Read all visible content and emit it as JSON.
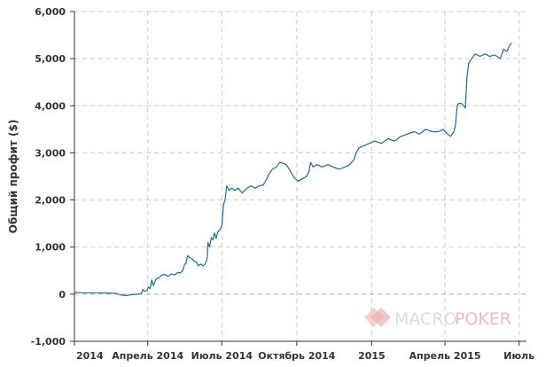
{
  "chart_data": {
    "type": "line",
    "title": "",
    "xlabel": "",
    "ylabel": "Общий профит ($)",
    "ylim": [
      -1000,
      6000
    ],
    "y_ticks": [
      -1000,
      0,
      1000,
      2000,
      3000,
      4000,
      5000,
      6000
    ],
    "y_tick_labels": [
      "-1,000",
      "0",
      "1,000",
      "2,000",
      "3,000",
      "4,000",
      "5,000",
      "6,000"
    ],
    "x_ticks": [
      {
        "label": "2014",
        "value": "2014-01-01"
      },
      {
        "label": "Апрель 2014",
        "value": "2014-04-01"
      },
      {
        "label": "Июль 2014",
        "value": "2014-07-01"
      },
      {
        "label": "Октябрь 2014",
        "value": "2014-10-01"
      },
      {
        "label": "2015",
        "value": "2015-01-01"
      },
      {
        "label": "Апрель 2015",
        "value": "2015-04-01"
      },
      {
        "label": "Июль",
        "value": "2015-07-01"
      }
    ],
    "xlim": [
      "2014-01-01",
      "2015-07-10"
    ],
    "grid": true,
    "series": [
      {
        "color": "#1f6e8c",
        "points": [
          [
            "2014-01-01",
            20
          ],
          [
            "2014-01-03",
            40
          ],
          [
            "2014-01-10",
            30
          ],
          [
            "2014-01-25",
            30
          ],
          [
            "2014-02-10",
            25
          ],
          [
            "2014-02-20",
            20
          ],
          [
            "2014-02-28",
            -20
          ],
          [
            "2014-03-05",
            -30
          ],
          [
            "2014-03-12",
            -10
          ],
          [
            "2014-03-20",
            0
          ],
          [
            "2014-03-24",
            10
          ],
          [
            "2014-03-26",
            100
          ],
          [
            "2014-03-28",
            60
          ],
          [
            "2014-03-31",
            80
          ],
          [
            "2014-04-02",
            150
          ],
          [
            "2014-04-04",
            120
          ],
          [
            "2014-04-06",
            300
          ],
          [
            "2014-04-08",
            180
          ],
          [
            "2014-04-11",
            320
          ],
          [
            "2014-04-15",
            350
          ],
          [
            "2014-04-18",
            400
          ],
          [
            "2014-04-22",
            420
          ],
          [
            "2014-04-26",
            380
          ],
          [
            "2014-04-30",
            430
          ],
          [
            "2014-05-04",
            410
          ],
          [
            "2014-05-08",
            460
          ],
          [
            "2014-05-11",
            450
          ],
          [
            "2014-05-14",
            500
          ],
          [
            "2014-05-16",
            620
          ],
          [
            "2014-05-18",
            660
          ],
          [
            "2014-05-20",
            820
          ],
          [
            "2014-05-22",
            780
          ],
          [
            "2014-05-25",
            760
          ],
          [
            "2014-05-28",
            700
          ],
          [
            "2014-05-31",
            680
          ],
          [
            "2014-06-02",
            600
          ],
          [
            "2014-06-05",
            640
          ],
          [
            "2014-06-08",
            600
          ],
          [
            "2014-06-11",
            650
          ],
          [
            "2014-06-13",
            760
          ],
          [
            "2014-06-14",
            1100
          ],
          [
            "2014-06-16",
            1000
          ],
          [
            "2014-06-18",
            1200
          ],
          [
            "2014-06-20",
            1150
          ],
          [
            "2014-06-22",
            1300
          ],
          [
            "2014-06-24",
            1180
          ],
          [
            "2014-06-26",
            1320
          ],
          [
            "2014-06-29",
            1380
          ],
          [
            "2014-07-01",
            1450
          ],
          [
            "2014-07-03",
            1900
          ],
          [
            "2014-07-05",
            2000
          ],
          [
            "2014-07-07",
            2300
          ],
          [
            "2014-07-10",
            2200
          ],
          [
            "2014-07-13",
            2250
          ],
          [
            "2014-07-17",
            2200
          ],
          [
            "2014-07-21",
            2250
          ],
          [
            "2014-07-26",
            2150
          ],
          [
            "2014-08-01",
            2250
          ],
          [
            "2014-08-06",
            2300
          ],
          [
            "2014-08-11",
            2250
          ],
          [
            "2014-08-16",
            2300
          ],
          [
            "2014-08-21",
            2320
          ],
          [
            "2014-08-25",
            2450
          ],
          [
            "2014-08-28",
            2550
          ],
          [
            "2014-09-01",
            2650
          ],
          [
            "2014-09-06",
            2700
          ],
          [
            "2014-09-10",
            2800
          ],
          [
            "2014-09-14",
            2780
          ],
          [
            "2014-09-18",
            2750
          ],
          [
            "2014-09-22",
            2650
          ],
          [
            "2014-09-25",
            2550
          ],
          [
            "2014-09-29",
            2450
          ],
          [
            "2014-10-03",
            2400
          ],
          [
            "2014-10-08",
            2450
          ],
          [
            "2014-10-13",
            2500
          ],
          [
            "2014-10-16",
            2600
          ],
          [
            "2014-10-18",
            2800
          ],
          [
            "2014-10-21",
            2700
          ],
          [
            "2014-10-26",
            2750
          ],
          [
            "2014-11-01",
            2700
          ],
          [
            "2014-11-08",
            2750
          ],
          [
            "2014-11-15",
            2700
          ],
          [
            "2014-11-22",
            2650
          ],
          [
            "2014-11-29",
            2700
          ],
          [
            "2014-12-05",
            2750
          ],
          [
            "2014-12-10",
            2850
          ],
          [
            "2014-12-13",
            3000
          ],
          [
            "2014-12-16",
            3100
          ],
          [
            "2014-12-22",
            3150
          ],
          [
            "2014-12-29",
            3200
          ],
          [
            "2015-01-05",
            3250
          ],
          [
            "2015-01-13",
            3200
          ],
          [
            "2015-01-21",
            3300
          ],
          [
            "2015-01-29",
            3250
          ],
          [
            "2015-02-06",
            3350
          ],
          [
            "2015-02-14",
            3400
          ],
          [
            "2015-02-22",
            3450
          ],
          [
            "2015-03-01",
            3400
          ],
          [
            "2015-03-08",
            3500
          ],
          [
            "2015-03-16",
            3450
          ],
          [
            "2015-03-24",
            3450
          ],
          [
            "2015-03-30",
            3500
          ],
          [
            "2015-04-04",
            3400
          ],
          [
            "2015-04-08",
            3350
          ],
          [
            "2015-04-12",
            3450
          ],
          [
            "2015-04-14",
            3600
          ],
          [
            "2015-04-16",
            4000
          ],
          [
            "2015-04-18",
            4050
          ],
          [
            "2015-04-21",
            4050
          ],
          [
            "2015-04-24",
            4000
          ],
          [
            "2015-04-26",
            3950
          ],
          [
            "2015-04-28",
            4600
          ],
          [
            "2015-04-30",
            4900
          ],
          [
            "2015-05-04",
            5000
          ],
          [
            "2015-05-08",
            5100
          ],
          [
            "2015-05-14",
            5050
          ],
          [
            "2015-05-20",
            5100
          ],
          [
            "2015-05-26",
            5050
          ],
          [
            "2015-06-01",
            5080
          ],
          [
            "2015-06-08",
            5000
          ],
          [
            "2015-06-12",
            5200
          ],
          [
            "2015-06-16",
            5150
          ],
          [
            "2015-06-20",
            5300
          ],
          [
            "2015-06-22",
            5330
          ]
        ]
      }
    ]
  },
  "watermark": {
    "brand_main": "MACRO",
    "brand_accent": "POKER",
    "main_color": "#d9d9d9",
    "accent_color": "#f0b8b8"
  },
  "colors": {
    "line": "#1f6e8c",
    "grid": "#cccccc",
    "axis": "#333333"
  }
}
